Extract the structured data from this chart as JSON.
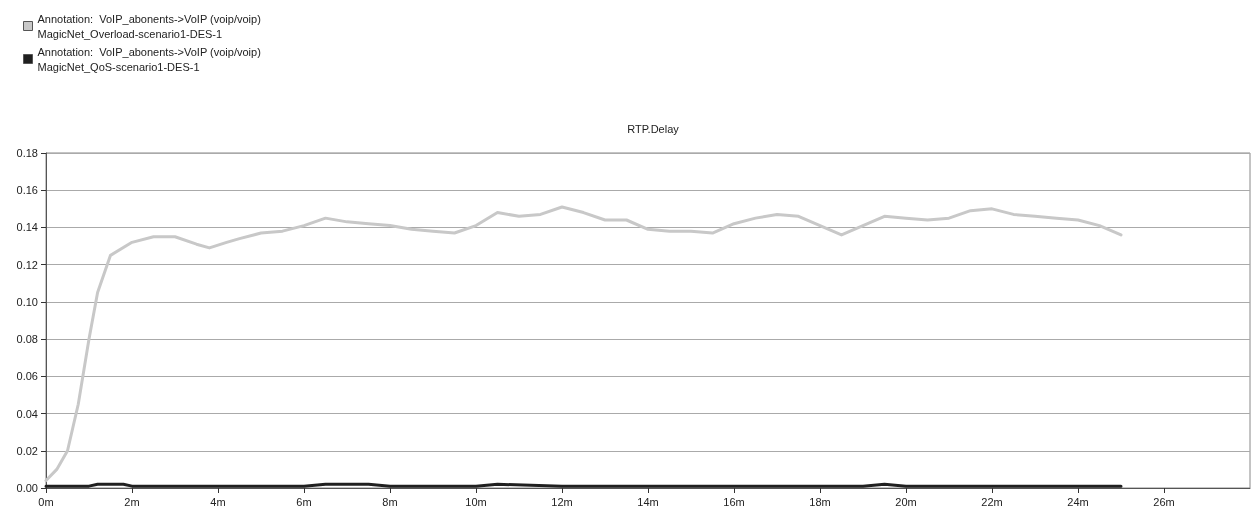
{
  "chart_data": {
    "type": "line",
    "title": "RTP.Delay",
    "legend": "top left",
    "grid": "y",
    "marker": "none",
    "line_style": "solid",
    "xlim": [
      0,
      28
    ],
    "xticks": [
      {
        "value": 0,
        "label": "0m"
      },
      {
        "value": 2,
        "label": "2m"
      },
      {
        "value": 4,
        "label": "4m"
      },
      {
        "value": 6,
        "label": "6m"
      },
      {
        "value": 8,
        "label": "8m"
      },
      {
        "value": 10,
        "label": "10m"
      },
      {
        "value": 12,
        "label": "12m"
      },
      {
        "value": 14,
        "label": "14m"
      },
      {
        "value": 16,
        "label": "16m"
      },
      {
        "value": 18,
        "label": "18m"
      },
      {
        "value": 20,
        "label": "20m"
      },
      {
        "value": 22,
        "label": "22m"
      },
      {
        "value": 24,
        "label": "24m"
      },
      {
        "value": 26,
        "label": "26m"
      }
    ],
    "ylim": [
      0,
      0.18
    ],
    "yticks": [
      {
        "value": 0,
        "label": "0.00"
      },
      0.02,
      0.04,
      0.06,
      0.08,
      {
        "value": 0.1,
        "label": "0.10"
      },
      0.12,
      0.14,
      0.16,
      0.18
    ],
    "series": [
      {
        "name": "Annotation:  VoIP_abonents->VoIP (voip/voip)\nMagicNet_Overload-scenario1-DES-1",
        "color": "#c8c8c8",
        "x": [
          0,
          0.25,
          0.5,
          0.75,
          1,
          1.2,
          1.5,
          2,
          2.5,
          3,
          3.5,
          3.8,
          4.2,
          4.5,
          5,
          5.5,
          6,
          6.5,
          7,
          7.5,
          8,
          8.5,
          9,
          9.5,
          10,
          10.5,
          11,
          11.5,
          12,
          12.5,
          13,
          13.5,
          14,
          14.5,
          15,
          15.5,
          16,
          16.5,
          17,
          17.5,
          18,
          18.5,
          19,
          19.5,
          20,
          20.5,
          21,
          21.5,
          22,
          22.5,
          23,
          23.5,
          24,
          24.5,
          25
        ],
        "values": [
          0.004,
          0.01,
          0.02,
          0.045,
          0.08,
          0.105,
          0.125,
          0.132,
          0.135,
          0.135,
          0.131,
          0.129,
          0.132,
          0.134,
          0.137,
          0.138,
          0.141,
          0.145,
          0.143,
          0.142,
          0.141,
          0.139,
          0.138,
          0.137,
          0.141,
          0.148,
          0.146,
          0.147,
          0.151,
          0.148,
          0.144,
          0.144,
          0.139,
          0.138,
          0.138,
          0.137,
          0.142,
          0.145,
          0.147,
          0.146,
          0.141,
          0.136,
          0.141,
          0.146,
          0.145,
          0.144,
          0.145,
          0.149,
          0.15,
          0.147,
          0.146,
          0.145,
          0.144,
          0.141,
          0.136
        ]
      },
      {
        "name": "Annotation:  VoIP_abonents->VoIP (voip/voip)\nMagicNet_QoS-scenario1-DES-1",
        "color": "#202020",
        "x": [
          0,
          1,
          1.2,
          1.8,
          2,
          4,
          6,
          6.5,
          7.5,
          8,
          10,
          10.5,
          12,
          14,
          16,
          18,
          19,
          19.5,
          20,
          22,
          24,
          25
        ],
        "values": [
          0.001,
          0.001,
          0.002,
          0.002,
          0.001,
          0.001,
          0.001,
          0.002,
          0.002,
          0.001,
          0.001,
          0.002,
          0.001,
          0.001,
          0.001,
          0.001,
          0.001,
          0.002,
          0.001,
          0.001,
          0.001,
          0.001
        ]
      }
    ]
  }
}
